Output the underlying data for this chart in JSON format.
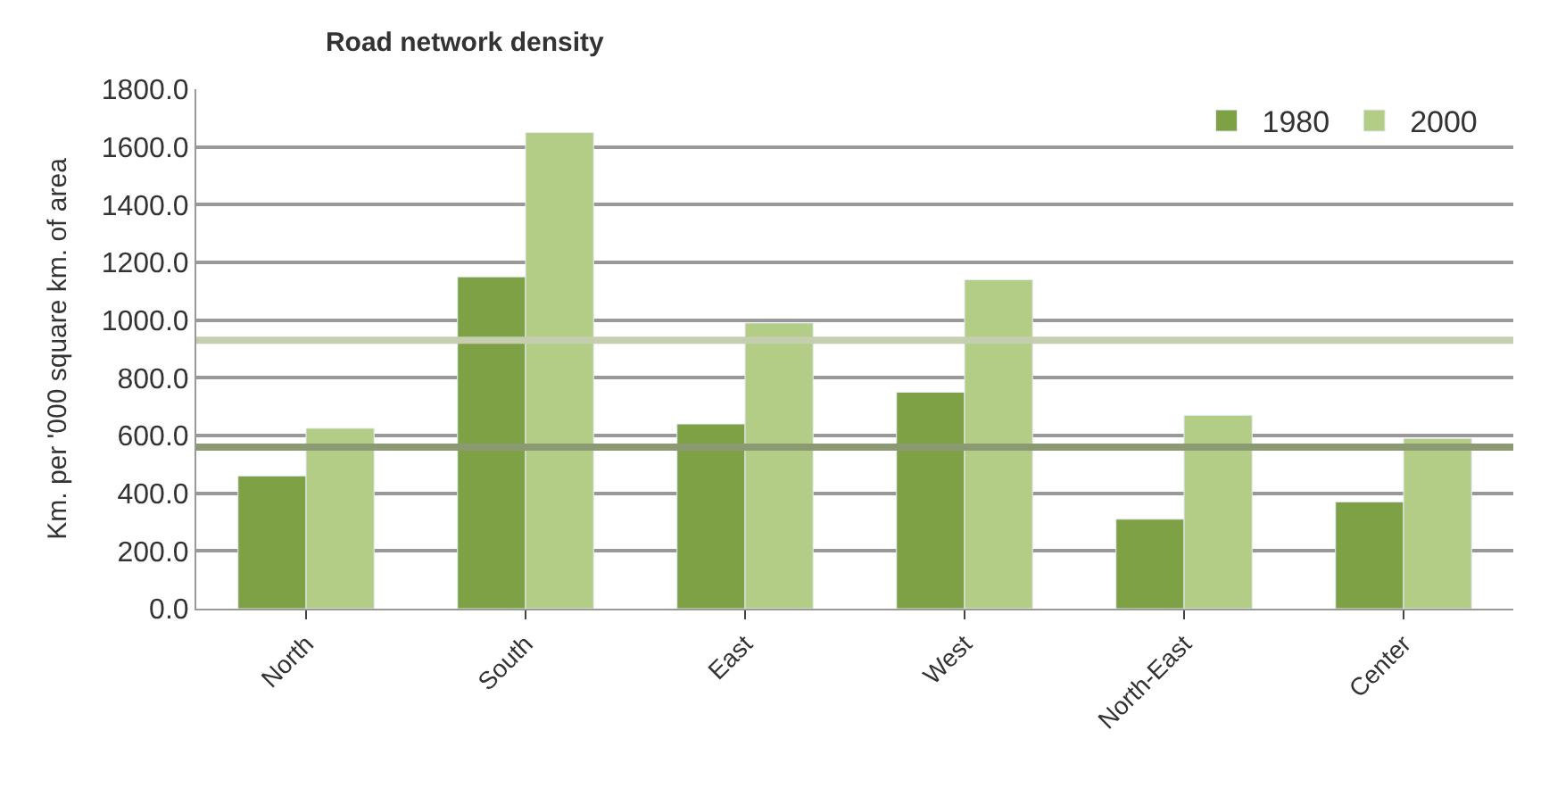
{
  "chart_data": {
    "type": "bar",
    "title": "Road network density",
    "ylabel": "Km. per '000 square km. of area",
    "categories": [
      "North",
      "South",
      "East",
      "West",
      "North-East",
      "Center"
    ],
    "series": [
      {
        "name": "1980",
        "color": "#7ea146",
        "values": [
          460,
          1150,
          640,
          750,
          310,
          370
        ]
      },
      {
        "name": "2000",
        "color": "#b3cc86",
        "values": [
          625,
          1650,
          990,
          1140,
          670,
          590
        ]
      }
    ],
    "ylim": [
      0,
      1800
    ],
    "yticks": [
      {
        "value": 0,
        "label": "0.0"
      },
      {
        "value": 200,
        "label": "200.0"
      },
      {
        "value": 400,
        "label": "400.0"
      },
      {
        "value": 600,
        "label": "600.0"
      },
      {
        "value": 800,
        "label": "800.0"
      },
      {
        "value": 1000,
        "label": "1000.0"
      },
      {
        "value": 1200,
        "label": "1200.0"
      },
      {
        "value": 1400,
        "label": "1400.0"
      },
      {
        "value": 1600,
        "label": "1600.0"
      },
      {
        "value": 1800,
        "label": "1800.0"
      }
    ],
    "ref_lines": [
      {
        "axis": "y",
        "value": 930,
        "color": "#c5cfb0"
      },
      {
        "axis": "y",
        "value": 560,
        "color": "#8c9a74"
      }
    ],
    "grid": "y",
    "legend": "top right"
  }
}
